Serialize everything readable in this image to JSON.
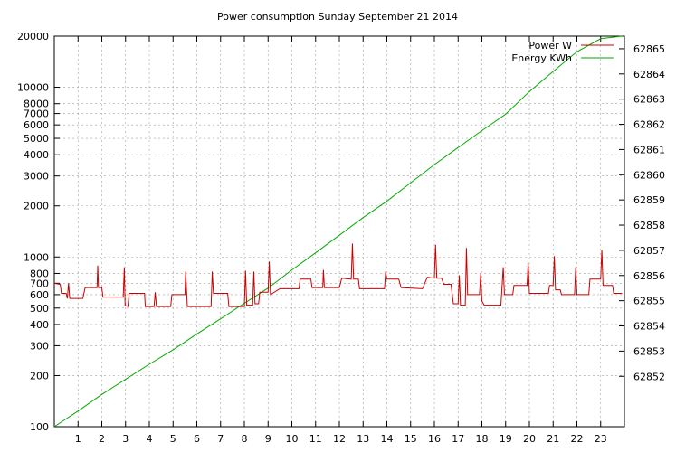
{
  "chart_data": {
    "type": "line",
    "title": "Power consumption Sunday September 21 2014",
    "xlabel": "",
    "ylabel": "",
    "y2label": "",
    "xlim": [
      0,
      24
    ],
    "ylim": [
      100,
      20000
    ],
    "y_scale": "log",
    "y2lim": [
      62850.0,
      62865.5
    ],
    "x_ticks": [
      1,
      2,
      3,
      4,
      5,
      6,
      7,
      8,
      9,
      10,
      11,
      12,
      13,
      14,
      15,
      16,
      17,
      18,
      19,
      20,
      21,
      22,
      23
    ],
    "y_ticks": [
      100,
      200,
      300,
      400,
      500,
      600,
      700,
      800,
      1000,
      2000,
      3000,
      4000,
      5000,
      6000,
      7000,
      8000,
      10000,
      20000
    ],
    "y2_ticks": [
      62852,
      62853,
      62854,
      62855,
      62856,
      62857,
      62858,
      62859,
      62860,
      62861,
      62862,
      62863,
      62864,
      62865
    ],
    "grid": true,
    "legend_position": "top-right",
    "series": [
      {
        "name": "Power W",
        "color": "#cc0000",
        "axis": "left",
        "points": [
          [
            0,
            700
          ],
          [
            0.25,
            690
          ],
          [
            0.3,
            610
          ],
          [
            0.5,
            610
          ],
          [
            0.55,
            570
          ],
          [
            0.6,
            700
          ],
          [
            0.65,
            570
          ],
          [
            1.2,
            570
          ],
          [
            1.3,
            660
          ],
          [
            1.8,
            660
          ],
          [
            1.83,
            890
          ],
          [
            1.86,
            660
          ],
          [
            2.0,
            660
          ],
          [
            2.05,
            580
          ],
          [
            2.9,
            580
          ],
          [
            2.95,
            870
          ],
          [
            2.98,
            520
          ],
          [
            3.1,
            510
          ],
          [
            3.15,
            610
          ],
          [
            3.8,
            610
          ],
          [
            3.83,
            510
          ],
          [
            4.2,
            510
          ],
          [
            4.25,
            620
          ],
          [
            4.3,
            510
          ],
          [
            4.9,
            510
          ],
          [
            4.95,
            600
          ],
          [
            5.5,
            600
          ],
          [
            5.53,
            820
          ],
          [
            5.6,
            510
          ],
          [
            6.6,
            510
          ],
          [
            6.65,
            820
          ],
          [
            6.7,
            610
          ],
          [
            7.3,
            610
          ],
          [
            7.35,
            510
          ],
          [
            8.0,
            510
          ],
          [
            8.05,
            830
          ],
          [
            8.1,
            520
          ],
          [
            8.35,
            520
          ],
          [
            8.4,
            820
          ],
          [
            8.45,
            530
          ],
          [
            8.6,
            530
          ],
          [
            8.65,
            620
          ],
          [
            9.0,
            620
          ],
          [
            9.05,
            940
          ],
          [
            9.1,
            600
          ],
          [
            9.5,
            650
          ],
          [
            10.0,
            650
          ],
          [
            10.3,
            650
          ],
          [
            10.35,
            740
          ],
          [
            10.8,
            740
          ],
          [
            10.85,
            660
          ],
          [
            11.3,
            660
          ],
          [
            11.33,
            840
          ],
          [
            11.37,
            660
          ],
          [
            12.0,
            660
          ],
          [
            12.1,
            750
          ],
          [
            12.5,
            740
          ],
          [
            12.55,
            1200
          ],
          [
            12.6,
            740
          ],
          [
            12.8,
            740
          ],
          [
            12.85,
            650
          ],
          [
            13.9,
            650
          ],
          [
            13.95,
            820
          ],
          [
            14.0,
            740
          ],
          [
            14.5,
            740
          ],
          [
            14.6,
            660
          ],
          [
            15.5,
            650
          ],
          [
            15.7,
            760
          ],
          [
            16.0,
            750
          ],
          [
            16.05,
            1180
          ],
          [
            16.1,
            750
          ],
          [
            16.3,
            750
          ],
          [
            16.4,
            690
          ],
          [
            16.7,
            690
          ],
          [
            16.8,
            530
          ],
          [
            17.0,
            530
          ],
          [
            17.05,
            780
          ],
          [
            17.1,
            520
          ],
          [
            17.3,
            520
          ],
          [
            17.35,
            1130
          ],
          [
            17.4,
            600
          ],
          [
            17.9,
            600
          ],
          [
            17.95,
            800
          ],
          [
            18.0,
            550
          ],
          [
            18.1,
            520
          ],
          [
            18.8,
            520
          ],
          [
            18.9,
            870
          ],
          [
            18.95,
            600
          ],
          [
            19.3,
            600
          ],
          [
            19.35,
            680
          ],
          [
            19.9,
            680
          ],
          [
            19.95,
            920
          ],
          [
            20.0,
            610
          ],
          [
            20.8,
            610
          ],
          [
            20.85,
            680
          ],
          [
            21.0,
            680
          ],
          [
            21.05,
            1010
          ],
          [
            21.1,
            640
          ],
          [
            21.3,
            640
          ],
          [
            21.35,
            600
          ],
          [
            21.9,
            600
          ],
          [
            21.95,
            870
          ],
          [
            22.0,
            600
          ],
          [
            22.5,
            600
          ],
          [
            22.55,
            740
          ],
          [
            23.0,
            740
          ],
          [
            23.05,
            1100
          ],
          [
            23.1,
            680
          ],
          [
            23.5,
            680
          ],
          [
            23.55,
            610
          ],
          [
            23.9,
            610
          ]
        ]
      },
      {
        "name": "Energy KWh",
        "color": "#00aa00",
        "axis": "right",
        "points": [
          [
            0,
            62850.0
          ],
          [
            1,
            62850.62
          ],
          [
            2,
            62851.28
          ],
          [
            3,
            62851.88
          ],
          [
            4,
            62852.48
          ],
          [
            5,
            62853.05
          ],
          [
            6,
            62853.68
          ],
          [
            7,
            62854.28
          ],
          [
            8,
            62854.9
          ],
          [
            9,
            62855.5
          ],
          [
            10,
            62856.22
          ],
          [
            11,
            62856.9
          ],
          [
            12,
            62857.6
          ],
          [
            13,
            62858.3
          ],
          [
            14,
            62858.95
          ],
          [
            15,
            62859.68
          ],
          [
            16,
            62860.4
          ],
          [
            17,
            62861.08
          ],
          [
            18,
            62861.75
          ],
          [
            19,
            62862.4
          ],
          [
            20,
            62863.3
          ],
          [
            21,
            62864.1
          ],
          [
            22,
            62864.88
          ],
          [
            23,
            62865.4
          ],
          [
            23.9,
            62865.5
          ]
        ]
      }
    ]
  }
}
